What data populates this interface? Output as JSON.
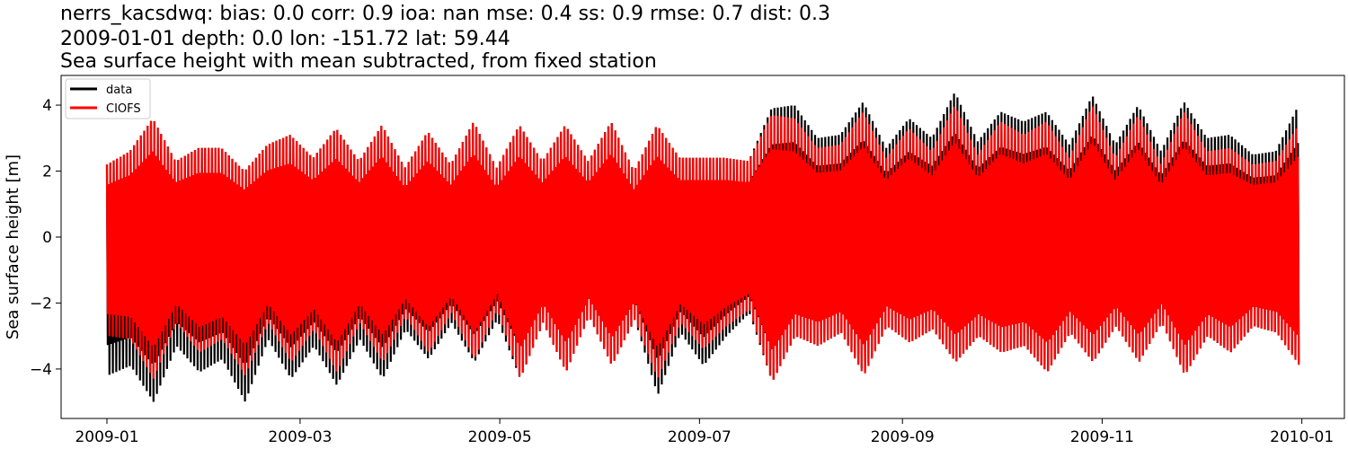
{
  "chart_data": {
    "type": "line",
    "title_lines": [
      "nerrs_kacsdwq: bias: 0.0  corr: 0.9  ioa: nan  mse: 0.4  ss: 0.9  rmse: 0.7  dist: 0.3",
      "2009-01-01 depth: 0.0 lon: -151.72 lat: 59.44",
      "Sea surface height with mean subtracted, from fixed station"
    ],
    "xlabel": "",
    "ylabel": "Sea surface height [m]",
    "x_ticks": [
      "2009-01",
      "2009-03",
      "2009-05",
      "2009-07",
      "2009-09",
      "2009-11",
      "2010-01"
    ],
    "y_ticks": [
      "−4",
      "−2",
      "0",
      "2",
      "4"
    ],
    "y_tick_values": [
      -4,
      -2,
      0,
      2,
      4
    ],
    "xlim": [
      "2008-12-18",
      "2010-01-14"
    ],
    "ylim": [
      -5.5,
      4.9
    ],
    "grid": false,
    "legend_position": "top-left",
    "series": [
      {
        "name": "data",
        "color": "#000000",
        "envelope": {
          "dates": [
            "2009-01-01",
            "2009-01-08",
            "2009-01-15",
            "2009-01-22",
            "2009-01-29",
            "2009-02-05",
            "2009-02-12",
            "2009-02-19",
            "2009-02-26",
            "2009-03-05",
            "2009-03-12",
            "2009-03-19",
            "2009-03-26",
            "2009-04-02",
            "2009-04-09",
            "2009-04-16",
            "2009-04-23",
            "2009-04-30",
            "2009-05-07",
            "2009-05-14",
            "2009-05-21",
            "2009-05-28",
            "2009-06-04",
            "2009-06-11",
            "2009-06-18",
            "2009-06-25",
            "2009-07-02",
            "2009-07-09",
            "2009-07-16",
            "2009-07-23",
            "2009-07-30",
            "2009-08-06",
            "2009-08-13",
            "2009-08-20",
            "2009-08-27",
            "2009-09-03",
            "2009-09-10",
            "2009-09-17",
            "2009-09-24",
            "2009-10-01",
            "2009-10-08",
            "2009-10-15",
            "2009-10-22",
            "2009-10-29",
            "2009-11-05",
            "2009-11-12",
            "2009-11-19",
            "2009-11-26",
            "2009-12-03",
            "2009-12-10",
            "2009-12-17",
            "2009-12-24",
            "2009-12-31"
          ],
          "max": [
            2.2,
            2.6,
            3.6,
            2.3,
            2.7,
            2.7,
            2.0,
            2.8,
            3.1,
            2.4,
            3.3,
            2.3,
            3.4,
            2.1,
            3.2,
            2.2,
            3.5,
            2.1,
            3.4,
            2.3,
            3.4,
            2.3,
            3.5,
            2.0,
            3.4,
            2.4,
            2.4,
            2.4,
            2.3,
            3.9,
            4.0,
            3.0,
            3.1,
            4.1,
            2.7,
            3.6,
            3.0,
            4.4,
            2.9,
            3.8,
            3.5,
            3.8,
            2.8,
            4.3,
            2.8,
            4.0,
            2.6,
            4.1,
            3.0,
            3.1,
            2.5,
            2.6,
            4.0
          ],
          "min": [
            -4.2,
            -3.9,
            -5.0,
            -3.3,
            -4.1,
            -3.7,
            -5.0,
            -3.1,
            -4.3,
            -3.3,
            -4.5,
            -3.1,
            -4.3,
            -2.8,
            -3.7,
            -2.6,
            -3.8,
            -2.5,
            -4.3,
            -2.6,
            -4.1,
            -2.4,
            -3.9,
            -2.5,
            -4.8,
            -2.9,
            -3.9,
            -3.0,
            -2.3,
            -4.4,
            -3.0,
            -3.3,
            -2.9,
            -4.1,
            -2.7,
            -3.2,
            -2.8,
            -3.8,
            -3.0,
            -3.5,
            -3.3,
            -4.1,
            -2.9,
            -3.8,
            -2.7,
            -3.8,
            -2.6,
            -4.1,
            -3.0,
            -3.5,
            -2.7,
            -2.9,
            -3.8
          ]
        }
      },
      {
        "name": "CIOFS",
        "color": "#ff0000",
        "envelope": {
          "dates": [
            "2009-01-01",
            "2009-01-08",
            "2009-01-15",
            "2009-01-22",
            "2009-01-29",
            "2009-02-05",
            "2009-02-12",
            "2009-02-19",
            "2009-02-26",
            "2009-03-05",
            "2009-03-12",
            "2009-03-19",
            "2009-03-26",
            "2009-04-02",
            "2009-04-09",
            "2009-04-16",
            "2009-04-23",
            "2009-04-30",
            "2009-05-07",
            "2009-05-14",
            "2009-05-21",
            "2009-05-28",
            "2009-06-04",
            "2009-06-11",
            "2009-06-18",
            "2009-06-25",
            "2009-07-02",
            "2009-07-09",
            "2009-07-16",
            "2009-07-23",
            "2009-07-30",
            "2009-08-06",
            "2009-08-13",
            "2009-08-20",
            "2009-08-27",
            "2009-09-03",
            "2009-09-10",
            "2009-09-17",
            "2009-09-24",
            "2009-10-01",
            "2009-10-08",
            "2009-10-15",
            "2009-10-22",
            "2009-10-29",
            "2009-11-05",
            "2009-11-12",
            "2009-11-19",
            "2009-11-26",
            "2009-12-03",
            "2009-12-10",
            "2009-12-17",
            "2009-12-24",
            "2009-12-31"
          ],
          "max": [
            2.2,
            2.6,
            3.6,
            2.3,
            2.7,
            2.7,
            2.0,
            2.8,
            3.1,
            2.4,
            3.3,
            2.3,
            3.4,
            2.1,
            3.2,
            2.2,
            3.5,
            2.1,
            3.4,
            2.3,
            3.4,
            2.3,
            3.5,
            2.0,
            3.4,
            2.4,
            2.4,
            2.4,
            2.3,
            3.7,
            3.6,
            2.7,
            2.8,
            3.8,
            2.4,
            3.3,
            2.6,
            4.0,
            2.5,
            3.5,
            3.1,
            3.5,
            2.4,
            4.0,
            2.4,
            3.7,
            2.2,
            3.8,
            2.6,
            2.7,
            2.2,
            2.3,
            3.4
          ],
          "min": [
            -3.0,
            -3.1,
            -4.3,
            -2.6,
            -3.5,
            -3.1,
            -4.2,
            -2.6,
            -3.8,
            -2.8,
            -4.1,
            -2.6,
            -3.8,
            -2.4,
            -3.5,
            -2.3,
            -3.7,
            -2.2,
            -4.3,
            -2.6,
            -4.1,
            -2.4,
            -3.9,
            -2.5,
            -4.3,
            -2.6,
            -3.4,
            -2.7,
            -2.2,
            -4.4,
            -3.0,
            -3.3,
            -2.9,
            -4.2,
            -2.7,
            -3.2,
            -2.8,
            -3.8,
            -3.0,
            -3.5,
            -3.3,
            -4.1,
            -2.9,
            -3.8,
            -2.7,
            -3.8,
            -2.6,
            -4.2,
            -3.0,
            -3.5,
            -2.7,
            -2.9,
            -3.9
          ]
        }
      }
    ]
  }
}
